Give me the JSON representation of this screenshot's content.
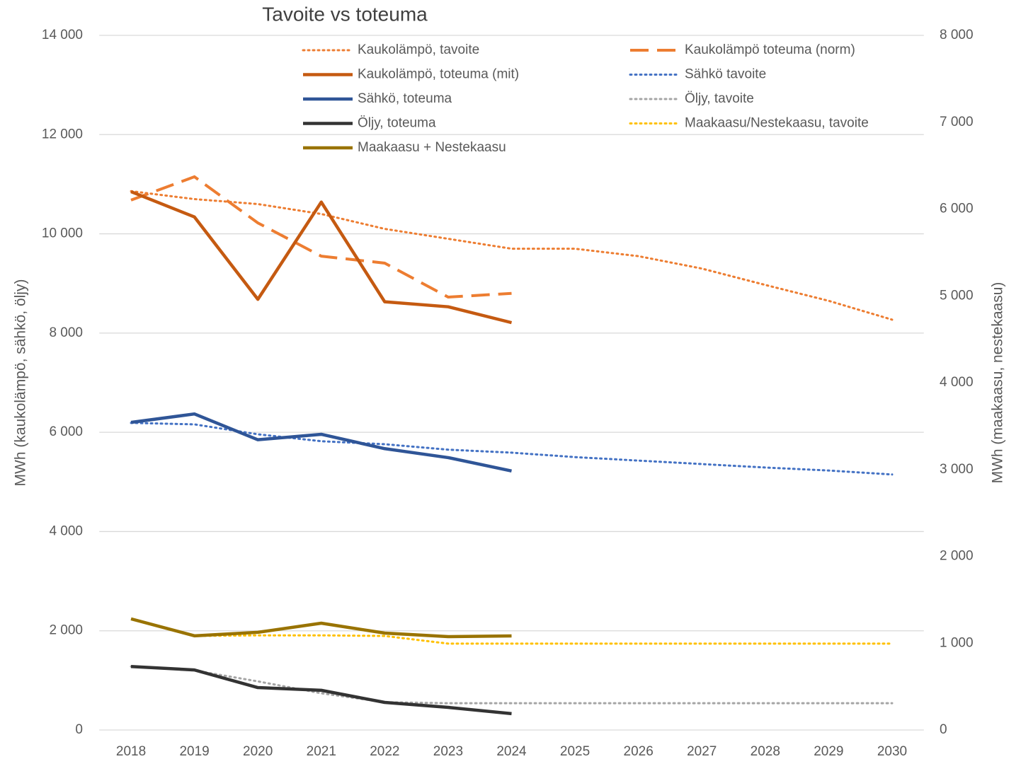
{
  "chart_data": {
    "type": "line",
    "title": "Tavoite vs toteuma",
    "y_label": "MWh (kaukolämpö, sähkö, öljy)",
    "y2_label": "MWh (maakaasu, nestekaasu)",
    "categories": [
      "2018",
      "2019",
      "2020",
      "2021",
      "2022",
      "2023",
      "2024",
      "2025",
      "2026",
      "2027",
      "2028",
      "2029",
      "2030"
    ],
    "ylim": [
      0,
      14000
    ],
    "yticks": [
      0,
      {
        "value": 2000,
        "label": "2 000"
      },
      {
        "value": 4000,
        "label": "4 000"
      },
      {
        "value": 6000,
        "label": "6 000"
      },
      {
        "value": 8000,
        "label": "8 000"
      },
      {
        "value": 10000,
        "label": "10 000"
      },
      {
        "value": 12000,
        "label": "12 000"
      },
      {
        "value": 14000,
        "label": "14 000"
      }
    ],
    "y2lim": [
      0,
      8000
    ],
    "y2ticks": [
      0,
      {
        "value": 1000,
        "label": "1 000"
      },
      {
        "value": 2000,
        "label": "2 000"
      },
      {
        "value": 3000,
        "label": "3 000"
      },
      {
        "value": 4000,
        "label": "4 000"
      },
      {
        "value": 5000,
        "label": "5 000"
      },
      {
        "value": 6000,
        "label": "6 000"
      },
      {
        "value": 7000,
        "label": "7 000"
      },
      {
        "value": 8000,
        "label": "8 000"
      }
    ],
    "grid": true,
    "legend": "top",
    "series": [
      {
        "name": "Kaukolämpö, tavoite",
        "color": "#ed7d31",
        "style": "dotted",
        "values": [
          10860,
          10700,
          10600,
          10400,
          10100,
          9900,
          9700,
          9700,
          9550,
          9300,
          8970,
          8650,
          8270
        ]
      },
      {
        "name": "Kaukolämpö toteuma (norm)",
        "color": "#ed7d31",
        "style": "dashed",
        "values": [
          10680,
          11150,
          10220,
          9550,
          9410,
          8725,
          8800,
          null,
          null,
          null,
          null,
          null,
          null
        ]
      },
      {
        "name": "Kaukolämpö, toteuma (mit)",
        "color": "#c55a11",
        "style": "solid",
        "values": [
          10850,
          10340,
          8680,
          10640,
          8630,
          8530,
          8210,
          null,
          null,
          null,
          null,
          null,
          null
        ]
      },
      {
        "name": "Sähkö tavoite",
        "color": "#4472c4",
        "style": "dotted",
        "values": [
          6190,
          6160,
          5960,
          5820,
          5760,
          5650,
          5590,
          5500,
          5430,
          5360,
          5290,
          5230,
          5150
        ]
      },
      {
        "name": "Sähkö, toteuma",
        "color": "#2f5597",
        "style": "solid",
        "values": [
          6200,
          6370,
          5850,
          5960,
          5670,
          5490,
          5220,
          null,
          null,
          null,
          null,
          null,
          null
        ]
      },
      {
        "name": "Öljy, tavoite",
        "color": "#a5a5a5",
        "style": "dotted",
        "values": [
          1280,
          1200,
          980,
          740,
          560,
          540,
          540,
          540,
          540,
          540,
          540,
          540,
          540
        ]
      },
      {
        "name": "Öljy, toteuma",
        "color": "#333333",
        "style": "solid",
        "values": [
          1280,
          1210,
          855,
          800,
          556,
          456,
          330,
          null,
          null,
          null,
          null,
          null,
          null
        ]
      },
      {
        "name": "Maakaasu/Nestekaasu, tavoite",
        "color": "#ffc000",
        "style": "dotted",
        "axis": "y2",
        "values": [
          null,
          1083,
          1090,
          1090,
          1083,
          995,
          995,
          995,
          995,
          995,
          995,
          995,
          995
        ]
      },
      {
        "name": "Maakaasu + Nestekaasu",
        "color": "#997300",
        "style": "solid",
        "axis": "y2",
        "values": [
          1280,
          1085,
          1125,
          1230,
          1116,
          1075,
          1083,
          null,
          null,
          null,
          null,
          null,
          null
        ]
      }
    ]
  }
}
